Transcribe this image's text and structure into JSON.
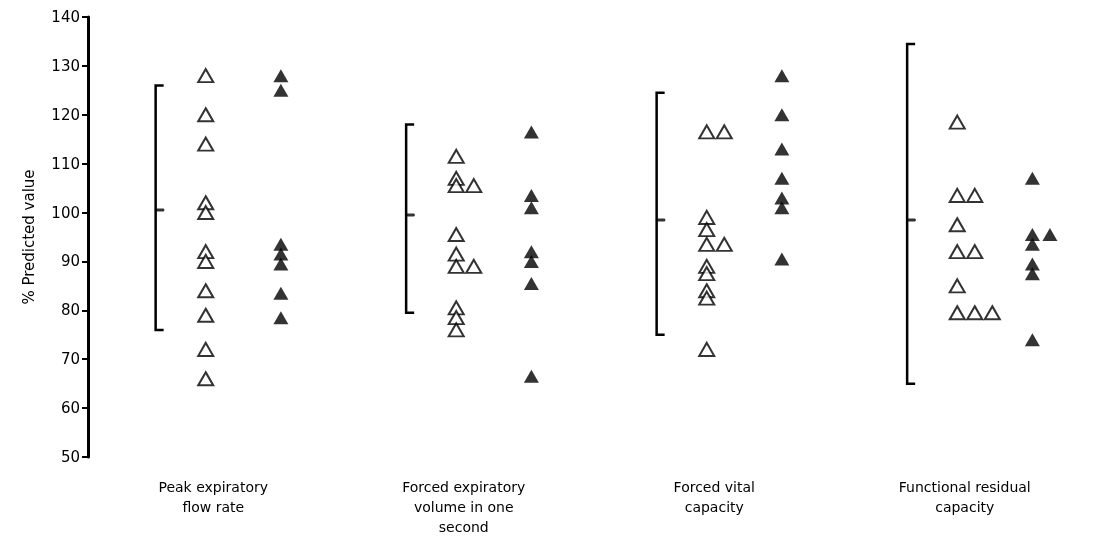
{
  "chart_data": {
    "type": "scatter",
    "ylabel": "% Predicted value",
    "categories": [
      "Peak expiratory\nflow rate",
      "Forced expiratory\nvolume in one\nsecond",
      "Forced vital\ncapacity",
      "Functional residual\ncapacity"
    ],
    "grid": false,
    "ylim": [
      50,
      140
    ],
    "yticks": [
      50,
      60,
      70,
      80,
      90,
      100,
      110,
      120,
      130,
      140
    ],
    "series": [
      {
        "type": "scatter",
        "color": "#000000",
        "x": [
          "Peak expiratory\nflow rate",
          "Forced expiratory\nvolume in one\nsecond",
          "Forced vital\ncapacity",
          "Functional residual\ncapacity"
        ],
        "values": [
          100.5,
          99.5,
          98.5,
          98.5
        ],
        "errors": [
          [
            76,
            126
          ],
          [
            79.5,
            118
          ],
          [
            75,
            124.5
          ],
          [
            65,
            134.5
          ]
        ]
      },
      {
        "type": "scatter",
        "marker": "triangle",
        "color": "#ffffff",
        "x": [
          "Peak expiratory\nflow rate",
          "Peak expiratory\nflow rate",
          "Peak expiratory\nflow rate",
          "Peak expiratory\nflow rate",
          "Peak expiratory\nflow rate",
          "Peak expiratory\nflow rate",
          "Peak expiratory\nflow rate",
          "Peak expiratory\nflow rate",
          "Peak expiratory\nflow rate",
          "Peak expiratory\nflow rate",
          "Peak expiratory\nflow rate",
          "Forced expiratory\nvolume in one\nsecond",
          "Forced expiratory\nvolume in one\nsecond",
          "Forced expiratory\nvolume in one\nsecond",
          "Forced expiratory\nvolume in one\nsecond",
          "Forced expiratory\nvolume in one\nsecond",
          "Forced expiratory\nvolume in one\nsecond",
          "Forced expiratory\nvolume in one\nsecond",
          "Forced expiratory\nvolume in one\nsecond",
          "Forced expiratory\nvolume in one\nsecond",
          "Forced expiratory\nvolume in one\nsecond",
          "Forced expiratory\nvolume in one\nsecond",
          "Forced vital\ncapacity",
          "Forced vital\ncapacity",
          "Forced vital\ncapacity",
          "Forced vital\ncapacity",
          "Forced vital\ncapacity",
          "Forced vital\ncapacity",
          "Forced vital\ncapacity",
          "Forced vital\ncapacity",
          "Forced vital\ncapacity",
          "Forced vital\ncapacity",
          "Forced vital\ncapacity",
          "Functional residual\ncapacity",
          "Functional residual\ncapacity",
          "Functional residual\ncapacity",
          "Functional residual\ncapacity",
          "Functional residual\ncapacity",
          "Functional residual\ncapacity",
          "Functional residual\ncapacity",
          "Functional residual\ncapacity",
          "Functional residual\ncapacity",
          "Functional residual\ncapacity"
        ],
        "values": [
          128,
          120,
          114,
          102,
          100,
          92,
          90,
          84,
          79,
          72,
          66,
          111.5,
          107,
          105.5,
          105.5,
          95.5,
          91.5,
          89,
          89,
          80.5,
          78.5,
          76,
          116.5,
          116.5,
          99,
          96.5,
          93.5,
          93.5,
          89,
          87.5,
          84,
          82.5,
          72,
          118.5,
          103.5,
          103.5,
          97.5,
          92,
          92,
          85,
          79.5,
          79.5,
          79.5
        ]
      },
      {
        "type": "scatter",
        "marker": "triangle",
        "color": "#000000",
        "x": [
          "Peak expiratory\nflow rate",
          "Peak expiratory\nflow rate",
          "Peak expiratory\nflow rate",
          "Peak expiratory\nflow rate",
          "Peak expiratory\nflow rate",
          "Peak expiratory\nflow rate",
          "Peak expiratory\nflow rate",
          "Forced expiratory\nvolume in one\nsecond",
          "Forced expiratory\nvolume in one\nsecond",
          "Forced expiratory\nvolume in one\nsecond",
          "Forced expiratory\nvolume in one\nsecond",
          "Forced expiratory\nvolume in one\nsecond",
          "Forced expiratory\nvolume in one\nsecond",
          "Forced expiratory\nvolume in one\nsecond",
          "Forced vital\ncapacity",
          "Forced vital\ncapacity",
          "Forced vital\ncapacity",
          "Forced vital\ncapacity",
          "Forced vital\ncapacity",
          "Forced vital\ncapacity",
          "Forced vital\ncapacity",
          "Functional residual\ncapacity",
          "Functional residual\ncapacity",
          "Functional residual\ncapacity",
          "Functional residual\ncapacity",
          "Functional residual\ncapacity",
          "Functional residual\ncapacity",
          "Functional residual\ncapacity"
        ],
        "values": [
          128,
          125,
          93.5,
          91.5,
          89.5,
          83.5,
          78.5,
          116.5,
          103.5,
          101,
          92,
          90,
          85.5,
          66.5,
          128,
          120,
          113,
          107,
          103,
          101,
          90.5,
          107,
          95.5,
          95.5,
          93.5,
          89.5,
          87.5,
          74
        ]
      }
    ]
  }
}
